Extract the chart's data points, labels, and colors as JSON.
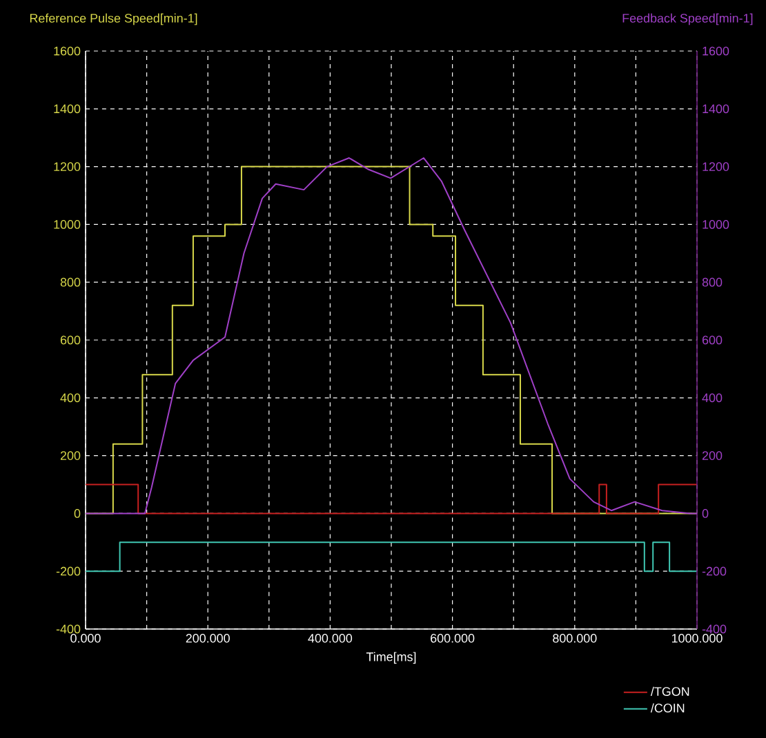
{
  "chart_data": {
    "type": "line",
    "xlabel": "Time[ms]",
    "ylabel": "Reference Pulse Speed[min-1]",
    "y2label": "Feedback Speed[min-1]",
    "xlim": [
      0,
      1000
    ],
    "xticks": [
      {
        "value": 0,
        "label": "0.000"
      },
      {
        "value": 100,
        "label": null
      },
      {
        "value": 200,
        "label": "200.000"
      },
      {
        "value": 300,
        "label": null
      },
      {
        "value": 400,
        "label": "400.000"
      },
      {
        "value": 500,
        "label": null
      },
      {
        "value": 600,
        "label": "600.000"
      },
      {
        "value": 700,
        "label": null
      },
      {
        "value": 800,
        "label": "800.000"
      },
      {
        "value": 900,
        "label": null
      },
      {
        "value": 1000,
        "label": "1000.000"
      }
    ],
    "ylim": [
      -400,
      1600
    ],
    "yticks": [
      -400,
      -200,
      0,
      200,
      400,
      600,
      800,
      1000,
      1200,
      1400,
      1600
    ],
    "y2lim": [
      -400,
      1600
    ],
    "y2ticks": [
      -400,
      -200,
      0,
      200,
      400,
      600,
      800,
      1000,
      1200,
      1400,
      1600
    ],
    "grid": true,
    "legend": "bottom right",
    "series": [
      {
        "type": "step",
        "color": "#d8d84a",
        "x": [
          0,
          45,
          93,
          142,
          176,
          228,
          255,
          530,
          568,
          605,
          650,
          711,
          763,
          1000
        ],
        "values": [
          0,
          240,
          480,
          720,
          960,
          1000,
          1200,
          1000,
          960,
          720,
          480,
          240,
          0,
          0
        ]
      },
      {
        "axis": "y2",
        "color": "#a040c8",
        "x": [
          0,
          97,
          108,
          147,
          176,
          228,
          259,
          289,
          311,
          357,
          395,
          431,
          463,
          499,
          553,
          582,
          620,
          695,
          756,
          792,
          831,
          860,
          898,
          943,
          989,
          1000
        ],
        "values": [
          0,
          0,
          90,
          450,
          530,
          610,
          900,
          1090,
          1140,
          1120,
          1200,
          1230,
          1190,
          1160,
          1230,
          1150,
          980,
          660,
          310,
          120,
          40,
          10,
          40,
          10,
          0,
          0
        ]
      },
      {
        "type": "step",
        "name": "/TGON",
        "color": "#c82020",
        "x": [
          0,
          86,
          840,
          852,
          937,
          1000
        ],
        "values": [
          100,
          0,
          100,
          0,
          100,
          100
        ]
      },
      {
        "type": "step",
        "name": "/COIN",
        "color": "#40c8b4",
        "x": [
          0,
          56,
          914,
          928,
          955,
          1000
        ],
        "values": [
          -200,
          -100,
          -200,
          -100,
          -200,
          -200
        ]
      }
    ]
  }
}
